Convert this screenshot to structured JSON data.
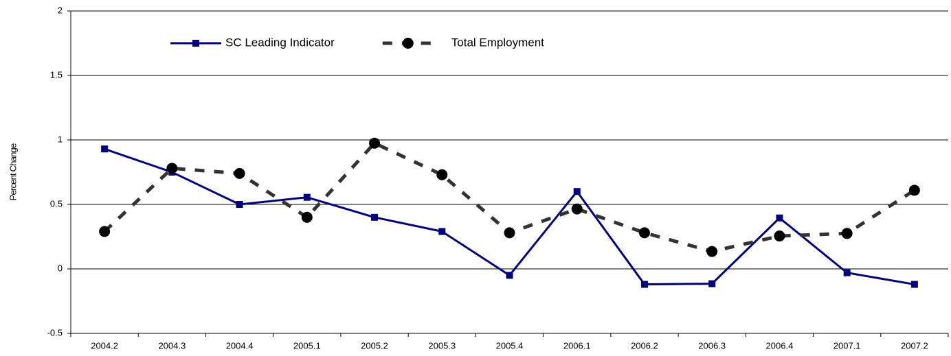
{
  "chart_data": {
    "type": "line",
    "y_label": "Percent Change",
    "categories": [
      "2004.2",
      "2004.3",
      "2004.4",
      "2005.1",
      "2005.2",
      "2005.3",
      "2005.4",
      "2006.1",
      "2006.2",
      "2006.3",
      "2006.4",
      "2007.1",
      "2007.2"
    ],
    "series": [
      {
        "name": "SC Leading Indicator",
        "color": "#000080",
        "marker": "square",
        "dashed": false,
        "values": [
          0.93,
          0.75,
          0.5,
          0.555,
          0.4,
          0.29,
          -0.05,
          0.6,
          -0.12,
          -0.115,
          0.395,
          -0.03,
          -0.12
        ]
      },
      {
        "name": "Total Employment",
        "color": "#333333",
        "marker": "circle",
        "dashed": true,
        "values": [
          0.29,
          0.78,
          0.74,
          0.4,
          0.975,
          0.73,
          0.28,
          0.465,
          0.28,
          0.135,
          0.255,
          0.275,
          0.61
        ]
      }
    ],
    "ylim": [
      -0.5,
      2
    ],
    "yticks": [
      -0.5,
      0,
      0.5,
      1,
      1.5,
      2
    ],
    "grid": true,
    "legend": "upper left"
  }
}
